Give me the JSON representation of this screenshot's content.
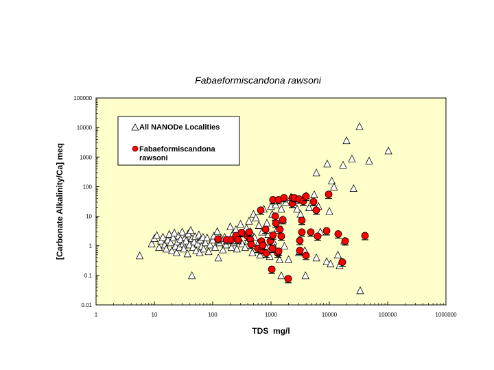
{
  "chart_data": {
    "type": "scatter",
    "title": "Fabaeformiscandona rawsoni",
    "xlabel": "TDS  mg/l",
    "ylabel": "[Carbonate Alkalinity/Ca] meq",
    "x_scale": "log",
    "y_scale": "log",
    "xlim": [
      1,
      1000000
    ],
    "ylim": [
      0.01,
      100000
    ],
    "x_ticks": [
      "1",
      "10",
      "100",
      "1000",
      "10000",
      "100000",
      "1000000"
    ],
    "y_ticks": [
      "0.01",
      "0.1",
      "1",
      "10",
      "100",
      "1000",
      "10000",
      "100000"
    ],
    "grid": false,
    "plot_background": "#FFFFCC",
    "legend_placement": "top-left",
    "series": [
      {
        "name": "All NANODe Localities",
        "marker": "triangle-open",
        "color": "#FFFFFF",
        "points": [
          [
            5.6,
            0.47
          ],
          [
            9,
            1.2
          ],
          [
            10,
            1.8
          ],
          [
            11,
            2.3
          ],
          [
            12,
            0.9
          ],
          [
            13,
            1.5
          ],
          [
            14,
            2.0
          ],
          [
            15,
            1.1
          ],
          [
            16,
            0.8
          ],
          [
            17,
            1.6
          ],
          [
            18,
            2.5
          ],
          [
            19,
            1.3
          ],
          [
            20,
            0.7
          ],
          [
            21,
            1.9
          ],
          [
            22,
            2.8
          ],
          [
            23,
            1.0
          ],
          [
            24,
            0.6
          ],
          [
            25,
            1.4
          ],
          [
            26,
            2.2
          ],
          [
            27,
            0.9
          ],
          [
            28,
            1.7
          ],
          [
            30,
            3.0
          ],
          [
            31,
            1.2
          ],
          [
            32,
            0.8
          ],
          [
            34,
            2.0
          ],
          [
            35,
            1.5
          ],
          [
            37,
            0.55
          ],
          [
            38,
            2.6
          ],
          [
            40,
            1.1
          ],
          [
            42,
            3.4
          ],
          [
            44,
            1.8
          ],
          [
            44,
            0.1
          ],
          [
            46,
            0.9
          ],
          [
            48,
            1.4
          ],
          [
            50,
            2.1
          ],
          [
            52,
            0.7
          ],
          [
            55,
            1.2
          ],
          [
            58,
            2.4
          ],
          [
            60,
            0.6
          ],
          [
            62,
            1.6
          ],
          [
            65,
            1.0
          ],
          [
            68,
            2.0
          ],
          [
            70,
            0.8
          ],
          [
            75,
            1.3
          ],
          [
            80,
            1.9
          ],
          [
            85,
            0.65
          ],
          [
            90,
            1.1
          ],
          [
            100,
            1.6
          ],
          [
            105,
            2.2
          ],
          [
            110,
            0.9
          ],
          [
            120,
            3.1
          ],
          [
            125,
            0.4
          ],
          [
            130,
            1.3
          ],
          [
            140,
            1.8
          ],
          [
            150,
            0.75
          ],
          [
            160,
            2.0
          ],
          [
            170,
            1.1
          ],
          [
            180,
            1.5
          ],
          [
            200,
            4.5
          ],
          [
            210,
            0.9
          ],
          [
            220,
            2.5
          ],
          [
            230,
            1.3
          ],
          [
            250,
            3.6
          ],
          [
            260,
            0.8
          ],
          [
            280,
            1.9
          ],
          [
            300,
            5.5
          ],
          [
            320,
            1.2
          ],
          [
            340,
            2.6
          ],
          [
            360,
            0.9
          ],
          [
            380,
            4.0
          ],
          [
            400,
            1.5
          ],
          [
            420,
            7
          ],
          [
            450,
            3.0
          ],
          [
            480,
            0.6
          ],
          [
            500,
            12
          ],
          [
            520,
            2.0
          ],
          [
            550,
            9
          ],
          [
            600,
            1.2
          ],
          [
            620,
            5
          ],
          [
            650,
            0.5
          ],
          [
            700,
            3
          ],
          [
            750,
            18
          ],
          [
            800,
            1.0
          ],
          [
            850,
            6
          ],
          [
            900,
            2.5
          ],
          [
            950,
            0.45
          ],
          [
            1000,
            22
          ],
          [
            1050,
            12
          ],
          [
            1100,
            1.4
          ],
          [
            1150,
            0.9
          ],
          [
            1200,
            25
          ],
          [
            1300,
            4
          ],
          [
            1400,
            0.35
          ],
          [
            1500,
            18
          ],
          [
            1500,
            0.1
          ],
          [
            1600,
            8
          ],
          [
            1700,
            1.0
          ],
          [
            1800,
            30
          ],
          [
            2000,
            0.35
          ],
          [
            2200,
            45
          ],
          [
            2500,
            25
          ],
          [
            2800,
            18
          ],
          [
            3000,
            0.6
          ],
          [
            3200,
            12
          ],
          [
            3500,
            40
          ],
          [
            3800,
            0.7
          ],
          [
            3900,
            0.1
          ],
          [
            4000,
            50
          ],
          [
            4500,
            20
          ],
          [
            5000,
            30
          ],
          [
            5500,
            55
          ],
          [
            6000,
            0.4
          ],
          [
            6000,
            300
          ],
          [
            6500,
            22
          ],
          [
            7000,
            3
          ],
          [
            9000,
            0.3
          ],
          [
            9200,
            600
          ],
          [
            10000,
            15
          ],
          [
            10500,
            0.25
          ],
          [
            11000,
            160
          ],
          [
            12000,
            100
          ],
          [
            14000,
            0.5
          ],
          [
            15000,
            0.22
          ],
          [
            16000,
            0.3
          ],
          [
            17200,
            550
          ],
          [
            18000,
            1.5
          ],
          [
            19700,
            3700
          ],
          [
            24400,
            890
          ],
          [
            26000,
            89
          ],
          [
            33000,
            11000
          ],
          [
            33800,
            0.031
          ],
          [
            48100,
            760
          ],
          [
            103000,
            1660
          ]
        ]
      },
      {
        "name": "Fabaeformiscandona rawsoni",
        "marker": "circle-filled",
        "color": "#FF0000",
        "points": [
          [
            124,
            1.7
          ],
          [
            172,
            1.6
          ],
          [
            208,
            1.6
          ],
          [
            251,
            2.2
          ],
          [
            272,
            1.6
          ],
          [
            312,
            2.8
          ],
          [
            398,
            2.1
          ],
          [
            421,
            2.9
          ],
          [
            444,
            1.6
          ],
          [
            456,
            1.1
          ],
          [
            597,
            0.81
          ],
          [
            667,
            16
          ],
          [
            685,
            1.45
          ],
          [
            685,
            0.73
          ],
          [
            722,
            1.05
          ],
          [
            805,
            3.6
          ],
          [
            827,
            0.56
          ],
          [
            973,
            1.45
          ],
          [
            1030,
            0.16
          ],
          [
            1056,
            0.81
          ],
          [
            1080,
            36
          ],
          [
            1080,
            2.3
          ],
          [
            1180,
            10
          ],
          [
            1210,
            5.8
          ],
          [
            1310,
            0.56
          ],
          [
            1350,
            36
          ],
          [
            1350,
            0.65
          ],
          [
            1420,
            3.6
          ],
          [
            1500,
            2.1
          ],
          [
            1590,
            7.6
          ],
          [
            1670,
            42
          ],
          [
            1970,
            0.077
          ],
          [
            2320,
            42
          ],
          [
            2320,
            27
          ],
          [
            2510,
            42
          ],
          [
            3030,
            38
          ],
          [
            3120,
            1.5
          ],
          [
            3120,
            0.69
          ],
          [
            3380,
            7.2
          ],
          [
            3380,
            2.9
          ],
          [
            3570,
            32
          ],
          [
            3980,
            47
          ],
          [
            3980,
            0.47
          ],
          [
            4810,
            2.9
          ],
          [
            5360,
            31
          ],
          [
            5970,
            16
          ],
          [
            6310,
            2.1
          ],
          [
            8970,
            3.2
          ],
          [
            9730,
            55
          ],
          [
            14200,
            2.5
          ],
          [
            16700,
            0.28
          ],
          [
            18700,
            1.45
          ],
          [
            40900,
            2.2
          ]
        ]
      }
    ]
  }
}
